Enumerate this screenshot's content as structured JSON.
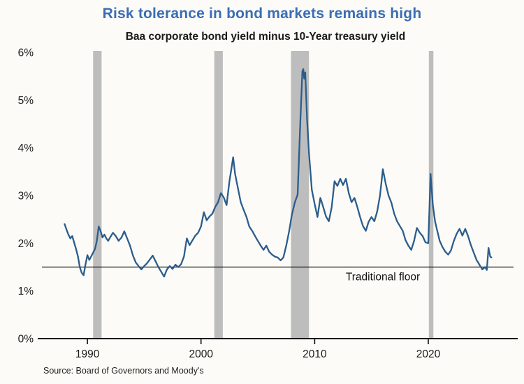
{
  "header": {
    "title": "Risk tolerance in bond markets remains high",
    "subtitle": "Baa corporate bond yield minus 10-Year treasury yield"
  },
  "source": "Source: Board of Governors and Moody's",
  "chart_data": {
    "type": "line",
    "title": "Risk tolerance in bond markets remains high",
    "subtitle": "Baa corporate bond yield minus 10-Year treasury yield",
    "xlabel": "",
    "ylabel": "",
    "xlim": [
      1986,
      2027.5
    ],
    "ylim": [
      0,
      6
    ],
    "grid": false,
    "legend": "none",
    "x_ticks": [
      1990,
      2000,
      2010,
      2020
    ],
    "y_ticks": [
      {
        "value": 0,
        "label": "0%"
      },
      {
        "value": 1,
        "label": "1%"
      },
      {
        "value": 2,
        "label": "2%"
      },
      {
        "value": 3,
        "label": "3%"
      },
      {
        "value": 4,
        "label": "4%"
      },
      {
        "value": 5,
        "label": "5%"
      },
      {
        "value": 6,
        "label": "6%"
      }
    ],
    "floor": {
      "value": 1.5,
      "label": "Traditional floor",
      "label_x": 2016,
      "label_offset_y": 19
    },
    "recession_bands": [
      {
        "start": 1990.5,
        "end": 1991.25
      },
      {
        "start": 2001.17,
        "end": 2001.92
      },
      {
        "start": 2007.92,
        "end": 2009.5
      },
      {
        "start": 2020.05,
        "end": 2020.45
      }
    ],
    "colors": {
      "line": "#2B5D8C",
      "band": "#BDBDBD",
      "axis": "#111111",
      "floor_line": "#111111",
      "title": "#3A6EB4"
    },
    "series": [
      {
        "name": "Baa corporate bond yield minus 10-Year treasury yield",
        "points": [
          [
            1988.0,
            2.4
          ],
          [
            1988.17,
            2.28
          ],
          [
            1988.33,
            2.18
          ],
          [
            1988.5,
            2.1
          ],
          [
            1988.67,
            2.15
          ],
          [
            1988.83,
            2.02
          ],
          [
            1989.0,
            1.88
          ],
          [
            1989.17,
            1.72
          ],
          [
            1989.33,
            1.5
          ],
          [
            1989.5,
            1.38
          ],
          [
            1989.67,
            1.33
          ],
          [
            1989.83,
            1.55
          ],
          [
            1990.0,
            1.75
          ],
          [
            1990.17,
            1.65
          ],
          [
            1990.33,
            1.72
          ],
          [
            1990.5,
            1.8
          ],
          [
            1990.67,
            1.88
          ],
          [
            1990.83,
            2.05
          ],
          [
            1991.0,
            2.35
          ],
          [
            1991.17,
            2.25
          ],
          [
            1991.33,
            2.12
          ],
          [
            1991.5,
            2.18
          ],
          [
            1991.67,
            2.1
          ],
          [
            1991.83,
            2.05
          ],
          [
            1992.0,
            2.12
          ],
          [
            1992.25,
            2.22
          ],
          [
            1992.5,
            2.15
          ],
          [
            1992.75,
            2.05
          ],
          [
            1993.0,
            2.12
          ],
          [
            1993.25,
            2.25
          ],
          [
            1993.5,
            2.1
          ],
          [
            1993.75,
            1.95
          ],
          [
            1994.0,
            1.75
          ],
          [
            1994.25,
            1.6
          ],
          [
            1994.5,
            1.52
          ],
          [
            1994.75,
            1.45
          ],
          [
            1995.0,
            1.52
          ],
          [
            1995.25,
            1.58
          ],
          [
            1995.5,
            1.66
          ],
          [
            1995.75,
            1.74
          ],
          [
            1996.0,
            1.62
          ],
          [
            1996.25,
            1.5
          ],
          [
            1996.5,
            1.4
          ],
          [
            1996.75,
            1.3
          ],
          [
            1997.0,
            1.45
          ],
          [
            1997.25,
            1.52
          ],
          [
            1997.5,
            1.46
          ],
          [
            1997.75,
            1.55
          ],
          [
            1998.0,
            1.5
          ],
          [
            1998.25,
            1.56
          ],
          [
            1998.5,
            1.72
          ],
          [
            1998.75,
            2.1
          ],
          [
            1999.0,
            1.96
          ],
          [
            1999.25,
            2.06
          ],
          [
            1999.5,
            2.16
          ],
          [
            1999.75,
            2.22
          ],
          [
            2000.0,
            2.35
          ],
          [
            2000.25,
            2.65
          ],
          [
            2000.5,
            2.48
          ],
          [
            2000.75,
            2.56
          ],
          [
            2001.0,
            2.62
          ],
          [
            2001.25,
            2.76
          ],
          [
            2001.5,
            2.86
          ],
          [
            2001.75,
            3.05
          ],
          [
            2002.0,
            2.96
          ],
          [
            2002.25,
            2.8
          ],
          [
            2002.5,
            3.3
          ],
          [
            2002.67,
            3.55
          ],
          [
            2002.83,
            3.8
          ],
          [
            2003.0,
            3.45
          ],
          [
            2003.25,
            3.15
          ],
          [
            2003.5,
            2.86
          ],
          [
            2003.75,
            2.7
          ],
          [
            2004.0,
            2.55
          ],
          [
            2004.25,
            2.35
          ],
          [
            2004.5,
            2.26
          ],
          [
            2004.75,
            2.15
          ],
          [
            2005.0,
            2.05
          ],
          [
            2005.25,
            1.95
          ],
          [
            2005.5,
            1.86
          ],
          [
            2005.75,
            1.95
          ],
          [
            2006.0,
            1.82
          ],
          [
            2006.25,
            1.76
          ],
          [
            2006.5,
            1.72
          ],
          [
            2006.75,
            1.7
          ],
          [
            2007.0,
            1.64
          ],
          [
            2007.25,
            1.7
          ],
          [
            2007.5,
            1.95
          ],
          [
            2007.75,
            2.25
          ],
          [
            2008.0,
            2.6
          ],
          [
            2008.25,
            2.85
          ],
          [
            2008.5,
            3.02
          ],
          [
            2008.75,
            4.6
          ],
          [
            2008.92,
            5.6
          ],
          [
            2009.0,
            5.65
          ],
          [
            2009.08,
            5.45
          ],
          [
            2009.17,
            5.58
          ],
          [
            2009.33,
            4.6
          ],
          [
            2009.5,
            3.9
          ],
          [
            2009.75,
            3.12
          ],
          [
            2010.0,
            2.82
          ],
          [
            2010.25,
            2.55
          ],
          [
            2010.5,
            2.95
          ],
          [
            2010.75,
            2.76
          ],
          [
            2011.0,
            2.56
          ],
          [
            2011.25,
            2.46
          ],
          [
            2011.5,
            2.76
          ],
          [
            2011.75,
            3.3
          ],
          [
            2012.0,
            3.2
          ],
          [
            2012.25,
            3.35
          ],
          [
            2012.5,
            3.22
          ],
          [
            2012.75,
            3.35
          ],
          [
            2013.0,
            3.05
          ],
          [
            2013.25,
            2.86
          ],
          [
            2013.5,
            2.95
          ],
          [
            2013.75,
            2.76
          ],
          [
            2014.0,
            2.55
          ],
          [
            2014.25,
            2.36
          ],
          [
            2014.5,
            2.26
          ],
          [
            2014.75,
            2.45
          ],
          [
            2015.0,
            2.55
          ],
          [
            2015.25,
            2.46
          ],
          [
            2015.5,
            2.66
          ],
          [
            2015.75,
            3.0
          ],
          [
            2016.0,
            3.55
          ],
          [
            2016.25,
            3.25
          ],
          [
            2016.5,
            3.0
          ],
          [
            2016.75,
            2.85
          ],
          [
            2017.0,
            2.62
          ],
          [
            2017.25,
            2.46
          ],
          [
            2017.5,
            2.36
          ],
          [
            2017.75,
            2.26
          ],
          [
            2018.0,
            2.06
          ],
          [
            2018.25,
            1.95
          ],
          [
            2018.5,
            1.86
          ],
          [
            2018.75,
            2.05
          ],
          [
            2019.0,
            2.32
          ],
          [
            2019.25,
            2.22
          ],
          [
            2019.5,
            2.15
          ],
          [
            2019.75,
            2.02
          ],
          [
            2020.0,
            2.0
          ],
          [
            2020.2,
            3.45
          ],
          [
            2020.4,
            2.8
          ],
          [
            2020.6,
            2.45
          ],
          [
            2020.8,
            2.25
          ],
          [
            2021.0,
            2.05
          ],
          [
            2021.25,
            1.92
          ],
          [
            2021.5,
            1.82
          ],
          [
            2021.75,
            1.76
          ],
          [
            2022.0,
            1.85
          ],
          [
            2022.25,
            2.05
          ],
          [
            2022.5,
            2.2
          ],
          [
            2022.75,
            2.3
          ],
          [
            2023.0,
            2.16
          ],
          [
            2023.25,
            2.3
          ],
          [
            2023.5,
            2.15
          ],
          [
            2023.75,
            1.96
          ],
          [
            2024.0,
            1.8
          ],
          [
            2024.25,
            1.65
          ],
          [
            2024.5,
            1.55
          ],
          [
            2024.75,
            1.45
          ],
          [
            2025.0,
            1.5
          ],
          [
            2025.15,
            1.44
          ],
          [
            2025.3,
            1.9
          ],
          [
            2025.45,
            1.72
          ],
          [
            2025.55,
            1.7
          ]
        ]
      }
    ]
  }
}
